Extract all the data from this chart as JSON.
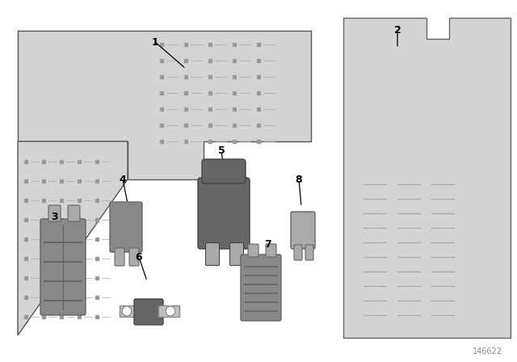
{
  "bg_color": "#ffffff",
  "part_color": "#888888",
  "part_color_light": "#aaaaaa",
  "part_color_dark": "#666666",
  "paper_color": "#d4d4d4",
  "metal_color": "#c0c0c0",
  "diagram_id": "146622"
}
